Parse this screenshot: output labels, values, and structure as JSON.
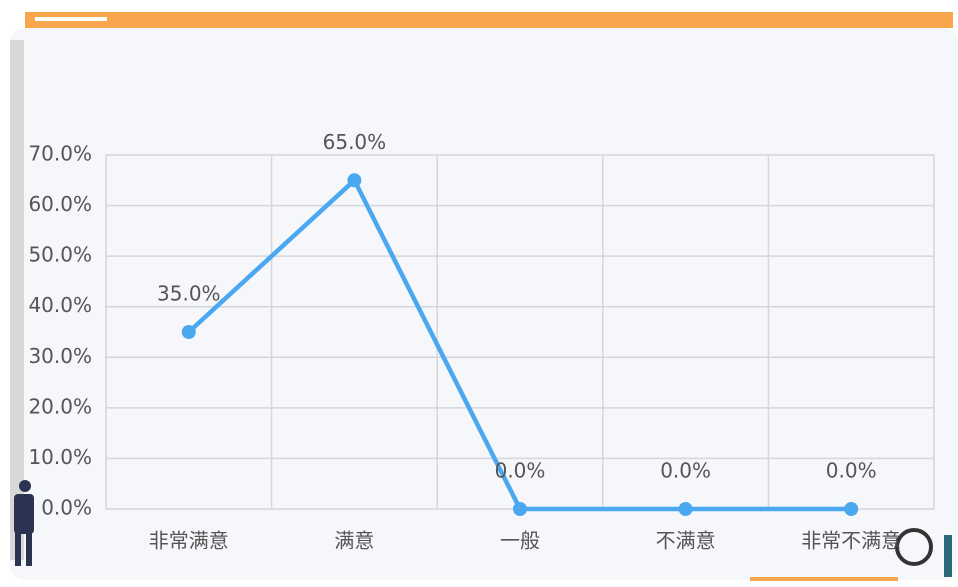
{
  "chart_data": {
    "type": "line",
    "categories": [
      "非常满意",
      "满意",
      "一般",
      "不满意",
      "非常不满意"
    ],
    "series": [
      {
        "color": "#4aa8f0",
        "values": [
          35,
          65,
          0,
          0,
          0
        ],
        "value_labels": [
          "35.0%",
          "65.0%",
          "0.0%",
          "0.0%",
          "0.0%"
        ]
      }
    ],
    "ylim": [
      0,
      70
    ],
    "yticks": [
      {
        "value": 0,
        "label": "0.0%"
      },
      {
        "value": 10,
        "label": "10.0%"
      },
      {
        "value": 20,
        "label": "20.0%"
      },
      {
        "value": 30,
        "label": "30.0%"
      },
      {
        "value": 40,
        "label": "40.0%"
      },
      {
        "value": 50,
        "label": "50.0%"
      },
      {
        "value": 60,
        "label": "60.0%"
      },
      {
        "value": 70,
        "label": "70.0%"
      }
    ],
    "grid": true
  }
}
